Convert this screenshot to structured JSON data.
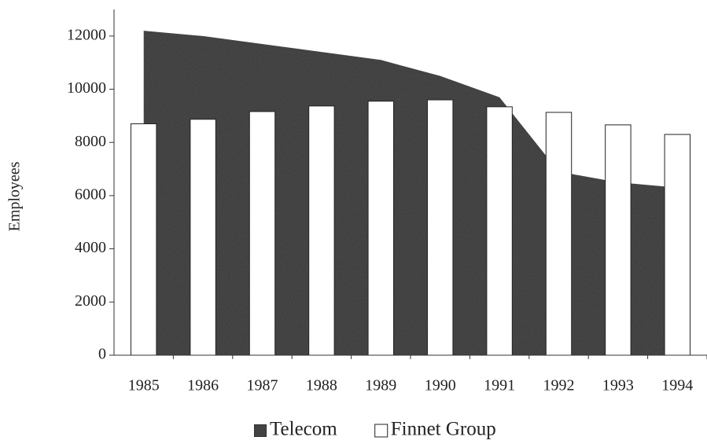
{
  "chart_data": {
    "type": "area_bar",
    "y_label": "Employees",
    "categories": [
      "1985",
      "1986",
      "1987",
      "1988",
      "1989",
      "1990",
      "1991",
      "1992",
      "1993",
      "1994"
    ],
    "series": [
      {
        "name": "Telecom",
        "type": "area",
        "color": "#4d4d4d",
        "values": [
          12200,
          12000,
          11700,
          11400,
          11100,
          10500,
          9700,
          6900,
          6500,
          6300
        ]
      },
      {
        "name": "Finnet Group",
        "type": "bar",
        "color": "#ffffff",
        "values": [
          8700,
          8870,
          9160,
          9370,
          9550,
          9600,
          9340,
          9130,
          8660,
          8300
        ]
      }
    ],
    "ylim": [
      0,
      13000
    ],
    "yticks": [
      0,
      2000,
      4000,
      6000,
      8000,
      10000,
      12000
    ],
    "legend": "bottom"
  }
}
